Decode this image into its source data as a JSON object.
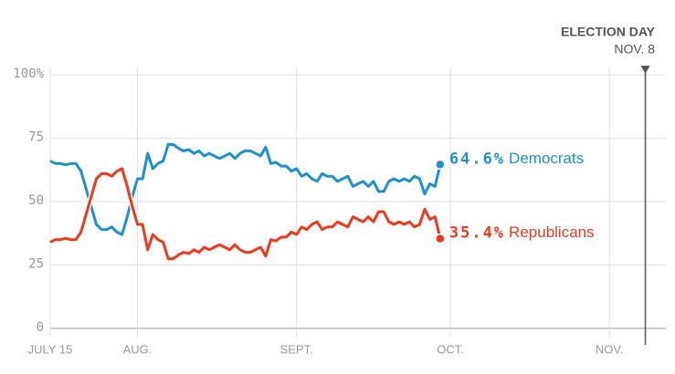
{
  "chart_data": {
    "type": "line",
    "x": [
      0,
      1,
      2,
      3,
      4,
      5,
      6,
      7,
      8,
      9,
      10,
      11,
      12,
      13,
      14,
      15,
      16,
      17,
      18,
      19,
      20,
      21,
      22,
      23,
      24,
      25,
      26,
      27,
      28,
      29,
      30,
      31,
      32,
      33,
      34,
      35,
      36,
      37,
      38,
      39,
      40,
      41,
      42,
      43,
      44,
      45,
      46,
      47,
      48,
      49,
      50,
      51,
      52,
      53,
      54,
      55,
      56,
      57,
      58,
      59,
      60,
      61,
      62,
      63,
      64,
      65,
      66,
      67,
      68,
      69,
      70,
      71,
      72,
      73,
      74,
      75,
      76
    ],
    "series": [
      {
        "name": "Democrats",
        "color": "#1d91d0",
        "end_label": "64.6%",
        "values": [
          66,
          65,
          65,
          64.5,
          65,
          65,
          62,
          55,
          48,
          41,
          39,
          39,
          40,
          38,
          37,
          44,
          52,
          59,
          59,
          69,
          63,
          65,
          66,
          72.6,
          72.5,
          71,
          70,
          70.5,
          69,
          70,
          68,
          69,
          68,
          67,
          68,
          69,
          67,
          69,
          70,
          70,
          69,
          68,
          71.5,
          65,
          65.5,
          64,
          64,
          62,
          63,
          60,
          61,
          59,
          58,
          61,
          60,
          60,
          58,
          59,
          60,
          56,
          57,
          58,
          56,
          58,
          54,
          54,
          58,
          59,
          58,
          59,
          58,
          60,
          59,
          53,
          57,
          56,
          64.6
        ]
      },
      {
        "name": "Republicans",
        "color": "#f0391c",
        "end_label": "35.4%",
        "values": [
          34,
          35,
          35,
          35.5,
          35,
          35,
          38,
          45,
          52,
          59,
          61,
          61,
          60,
          62,
          63,
          56,
          48,
          41,
          41,
          31,
          37,
          35,
          34,
          27.4,
          27.5,
          29,
          30,
          29.5,
          31,
          30,
          32,
          31,
          32,
          33,
          32,
          31,
          33,
          31,
          30,
          30,
          31,
          32,
          28.5,
          35,
          34.5,
          36,
          36,
          38,
          37,
          40,
          39,
          41,
          42,
          39,
          40,
          40,
          42,
          41,
          40,
          44,
          43,
          42,
          44,
          42,
          46,
          46,
          42,
          41,
          42,
          41,
          42,
          40,
          41,
          47,
          43,
          44,
          35.4
        ]
      }
    ],
    "xlim": [
      0,
      120
    ],
    "xticks": [
      {
        "value": 0,
        "label": "JULY 15"
      },
      {
        "value": 17,
        "label": "AUG."
      },
      {
        "value": 48,
        "label": "SEPT."
      },
      {
        "value": 78,
        "label": "OCT."
      },
      {
        "value": 109,
        "label": "NOV."
      }
    ],
    "ylim": [
      0,
      100
    ],
    "yticks": [
      0,
      25,
      50,
      75,
      {
        "value": 100,
        "label": "100%"
      }
    ],
    "grid": true,
    "annotation": {
      "label": "ELECTION DAY",
      "sublabel": "NOV. 8",
      "x": 116
    }
  }
}
